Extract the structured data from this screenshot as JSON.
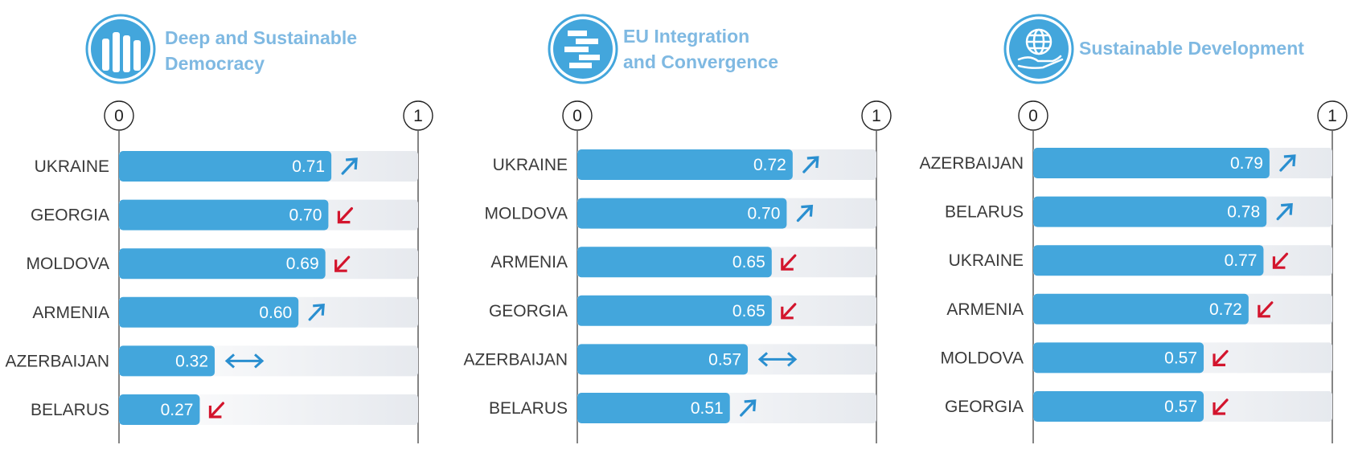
{
  "colors": {
    "bar": "#43a6dc",
    "track": "#e6e9ee",
    "title": "#7fb9e2",
    "up": "#2a8fd0",
    "down": "#d3152d",
    "same": "#2a8fd0"
  },
  "chart_data": [
    {
      "type": "bar",
      "title": "Deep and Sustainable\nDemocracy",
      "icon": "raised-hands-icon",
      "xlim": [
        0,
        1
      ],
      "x_ticks": [
        "0",
        "1"
      ],
      "categories": [
        "UKRAINE",
        "GEORGIA",
        "MOLDOVA",
        "ARMENIA",
        "AZERBAIJAN",
        "BELARUS"
      ],
      "values": [
        0.71,
        0.7,
        0.69,
        0.6,
        0.32,
        0.27
      ],
      "labels": [
        "0.71",
        "0.70",
        "0.69",
        "0.60",
        "0.32",
        "0.27"
      ],
      "trends": [
        "up",
        "down",
        "down",
        "up",
        "same",
        "down"
      ]
    },
    {
      "type": "bar",
      "title": "EU Integration\nand Convergence",
      "icon": "stacked-blocks-icon",
      "xlim": [
        0,
        1
      ],
      "x_ticks": [
        "0",
        "1"
      ],
      "categories": [
        "UKRAINE",
        "MOLDOVA",
        "ARMENIA",
        "GEORGIA",
        "AZERBAIJAN",
        "BELARUS"
      ],
      "values": [
        0.72,
        0.7,
        0.65,
        0.65,
        0.57,
        0.51
      ],
      "labels": [
        "0.72",
        "0.70",
        "0.65",
        "0.65",
        "0.57",
        "0.51"
      ],
      "trends": [
        "up",
        "up",
        "down",
        "down",
        "same",
        "up"
      ]
    },
    {
      "type": "bar",
      "title": "Sustainable Development",
      "icon": "globe-in-hand-icon",
      "xlim": [
        0,
        1
      ],
      "x_ticks": [
        "0",
        "1"
      ],
      "categories": [
        "AZERBAIJAN",
        "BELARUS",
        "UKRAINE",
        "ARMENIA",
        "MOLDOVA",
        "GEORGIA"
      ],
      "values": [
        0.79,
        0.78,
        0.77,
        0.72,
        0.57,
        0.57
      ],
      "labels": [
        "0.79",
        "0.78",
        "0.77",
        "0.72",
        "0.57",
        "0.57"
      ],
      "trends": [
        "up",
        "up",
        "down",
        "down",
        "down",
        "down"
      ]
    }
  ]
}
